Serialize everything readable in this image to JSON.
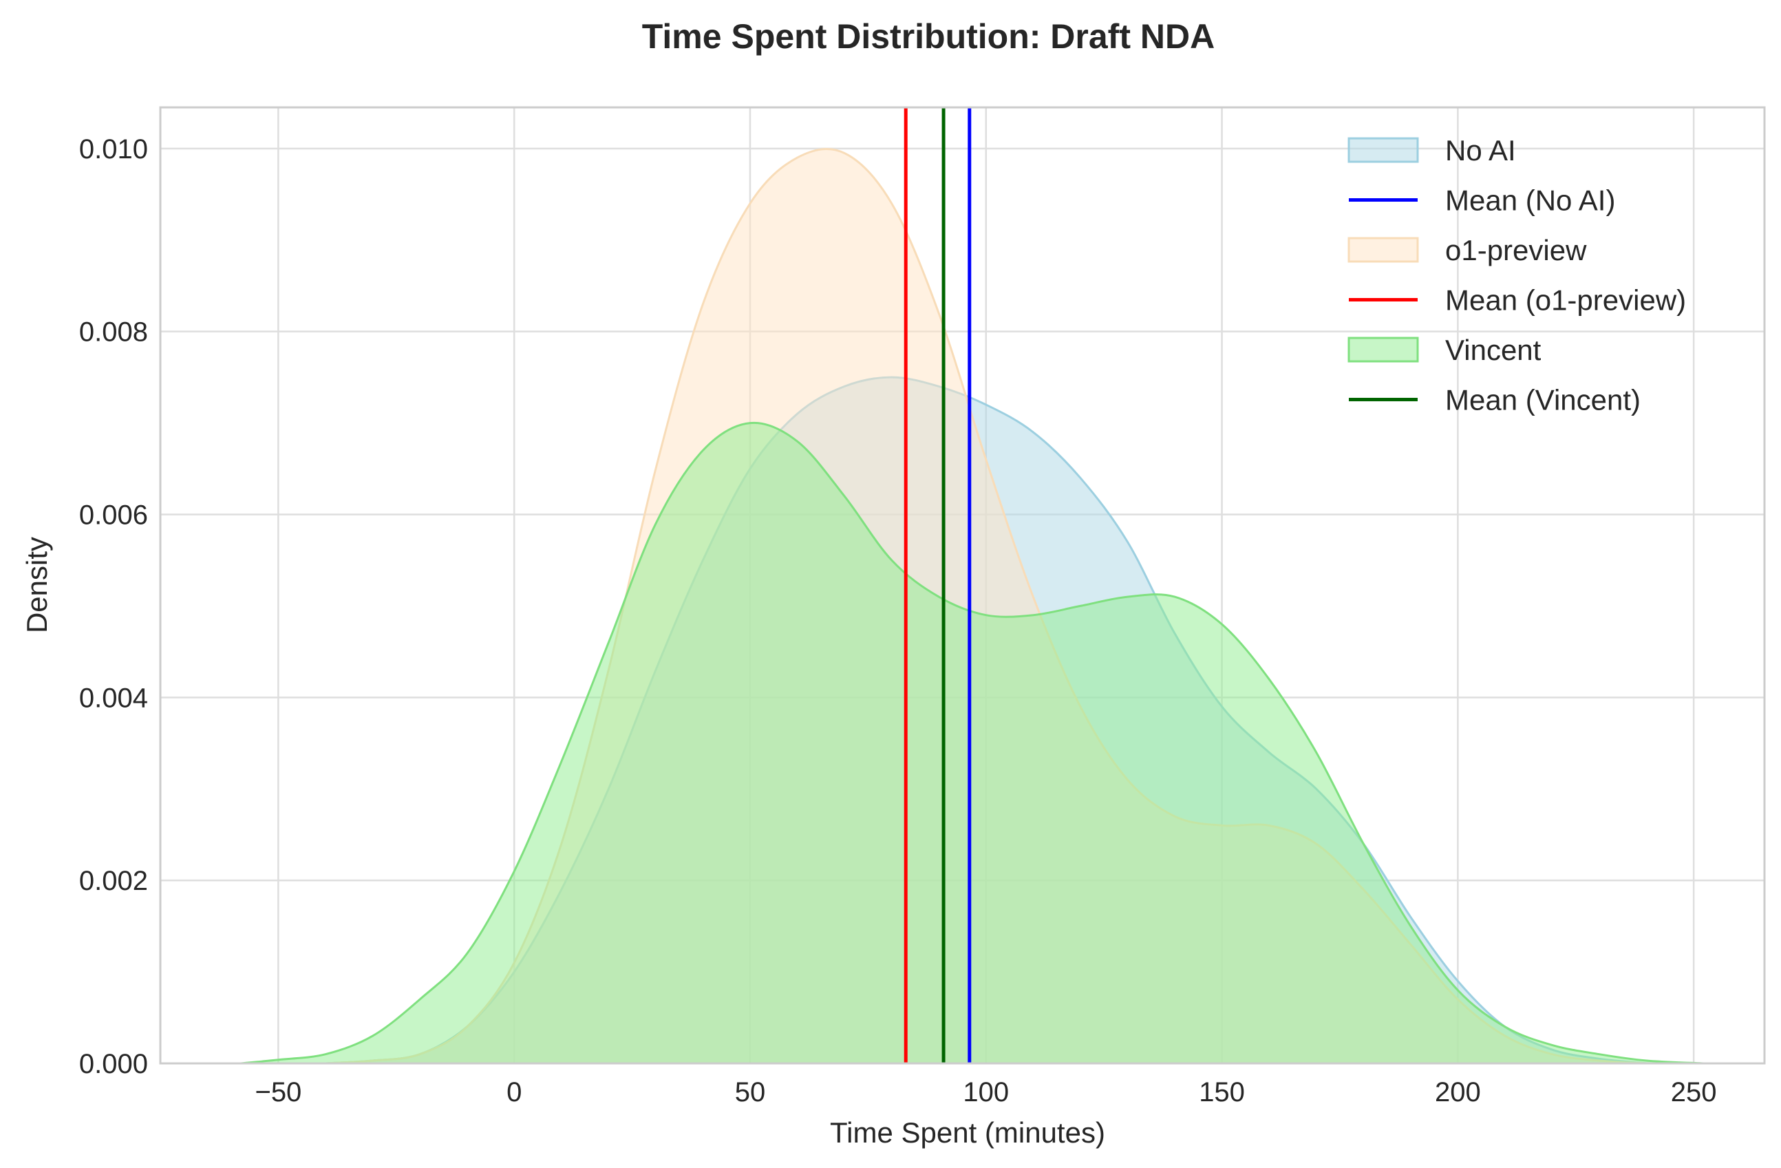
{
  "chart_data": {
    "type": "area",
    "title": "Time Spent Distribution: Draft NDA",
    "xlabel": "Time Spent (minutes)",
    "ylabel": "Density",
    "xlim": [
      -75,
      265
    ],
    "ylim": [
      0,
      0.01045
    ],
    "xticks": [
      -50,
      0,
      50,
      100,
      150,
      200,
      250
    ],
    "xtick_labels": [
      "−50",
      "0",
      "50",
      "100",
      "150",
      "200",
      "250"
    ],
    "yticks": [
      0,
      0.002,
      0.004,
      0.006,
      0.008,
      0.01
    ],
    "ytick_labels": [
      "0.000",
      "0.002",
      "0.004",
      "0.006",
      "0.008",
      "0.010"
    ],
    "grid": true,
    "legend_position": "top-right",
    "series": [
      {
        "name": "No AI",
        "kind": "density",
        "fill": "#add8e6",
        "stroke": "#9ccfe0",
        "x": [
          -40,
          -30,
          -20,
          -10,
          0,
          10,
          20,
          30,
          40,
          50,
          60,
          70,
          80,
          90,
          100,
          110,
          120,
          130,
          140,
          150,
          160,
          170,
          180,
          190,
          200,
          210,
          220,
          230,
          240
        ],
        "y": [
          0.0,
          3e-05,
          0.0001,
          0.0004,
          0.001,
          0.0019,
          0.003,
          0.0043,
          0.0055,
          0.0065,
          0.0071,
          0.0074,
          0.0075,
          0.0074,
          0.0072,
          0.0069,
          0.0064,
          0.0057,
          0.0047,
          0.0039,
          0.0034,
          0.003,
          0.0024,
          0.0016,
          0.0009,
          0.0004,
          0.00015,
          5e-05,
          0.0
        ]
      },
      {
        "name": "Mean (No AI)",
        "kind": "mean",
        "color": "#0000ff",
        "value": 96.5
      },
      {
        "name": "o1-preview",
        "kind": "density",
        "fill": "#ffe4c4",
        "stroke": "#f8dcb8",
        "x": [
          -40,
          -30,
          -20,
          -10,
          0,
          10,
          20,
          30,
          40,
          50,
          60,
          70,
          80,
          90,
          100,
          110,
          120,
          130,
          140,
          150,
          160,
          170,
          180,
          190,
          200,
          210,
          220,
          230,
          240
        ],
        "y": [
          0.0,
          3e-05,
          0.0001,
          0.0004,
          0.0011,
          0.0024,
          0.0043,
          0.0065,
          0.0083,
          0.0094,
          0.0099,
          0.00995,
          0.0094,
          0.0082,
          0.0066,
          0.0051,
          0.0039,
          0.0031,
          0.0027,
          0.0026,
          0.0026,
          0.0024,
          0.0019,
          0.0013,
          0.0007,
          0.0003,
          0.0001,
          3e-05,
          0.0
        ]
      },
      {
        "name": "Mean (o1-preview)",
        "kind": "mean",
        "color": "#ff0000",
        "value": 83
      },
      {
        "name": "Vincent",
        "kind": "density",
        "fill": "#90ee90",
        "stroke": "#7fe07f",
        "x": [
          -58,
          -50,
          -40,
          -30,
          -20,
          -10,
          0,
          10,
          20,
          30,
          40,
          50,
          60,
          70,
          80,
          90,
          100,
          110,
          120,
          130,
          140,
          150,
          160,
          170,
          180,
          190,
          200,
          210,
          220,
          230,
          240,
          252
        ],
        "y": [
          0.0,
          4e-05,
          0.0001,
          0.0003,
          0.0007,
          0.0012,
          0.0021,
          0.0033,
          0.0046,
          0.0059,
          0.0067,
          0.007,
          0.0068,
          0.0062,
          0.0055,
          0.0051,
          0.0049,
          0.0049,
          0.005,
          0.0051,
          0.0051,
          0.0048,
          0.0042,
          0.0034,
          0.0024,
          0.0015,
          0.0008,
          0.0004,
          0.0002,
          0.0001,
          3e-05,
          0.0
        ]
      },
      {
        "name": "Mean (Vincent)",
        "kind": "mean",
        "color": "#006400",
        "value": 91
      }
    ]
  }
}
